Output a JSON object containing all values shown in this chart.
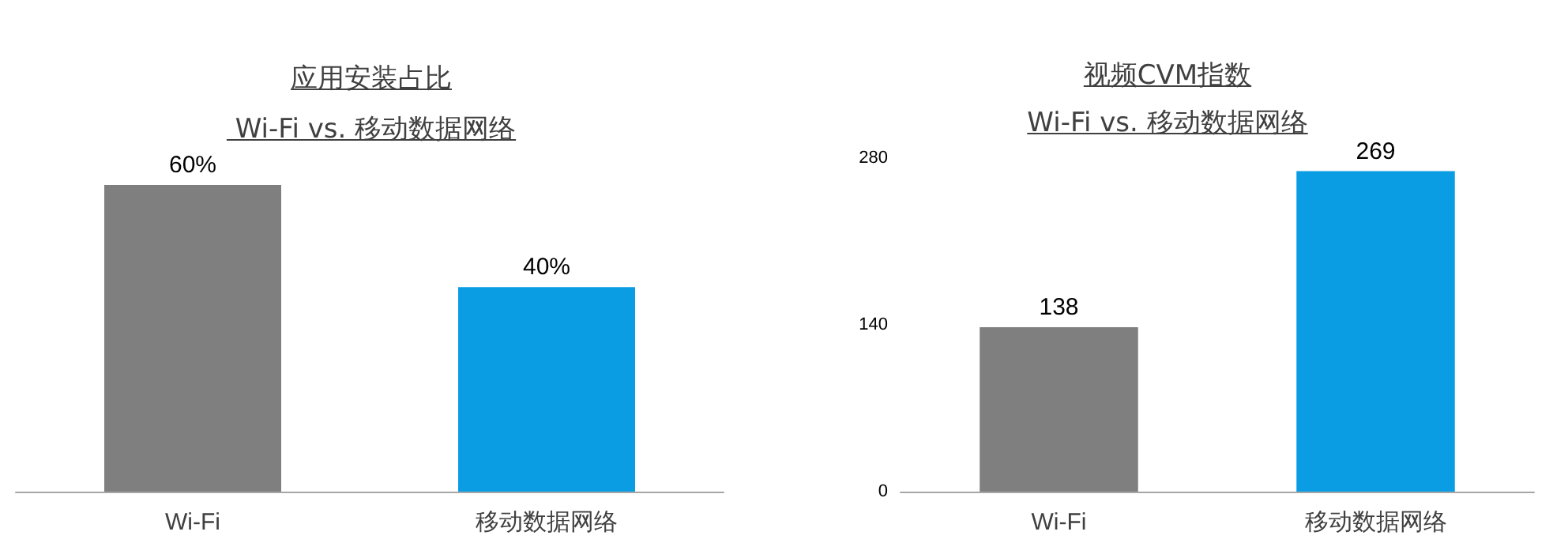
{
  "chart_data": [
    {
      "type": "bar",
      "title": "应用安装占比",
      "subtitle": " Wi-Fi vs. 移动数据网络",
      "categories": [
        "Wi-Fi",
        "移动数据网络"
      ],
      "values": [
        60,
        40
      ],
      "colors": [
        "#7f7f7f",
        "#0a9de4"
      ],
      "value_labels": [
        "60%",
        "40%"
      ],
      "tick_labels": "x",
      "grid": false
    },
    {
      "type": "bar",
      "title": "视频CVM指数",
      "subtitle": "Wi-Fi vs. 移动数据网络",
      "categories": [
        "Wi-Fi",
        "移动数据网络"
      ],
      "values": [
        138,
        269
      ],
      "colors": [
        "#7f7f7f",
        "#0a9de4"
      ],
      "data_labels": true,
      "ylim": [
        0,
        280
      ],
      "yticks": [
        0,
        140,
        280
      ],
      "grid": false
    }
  ]
}
